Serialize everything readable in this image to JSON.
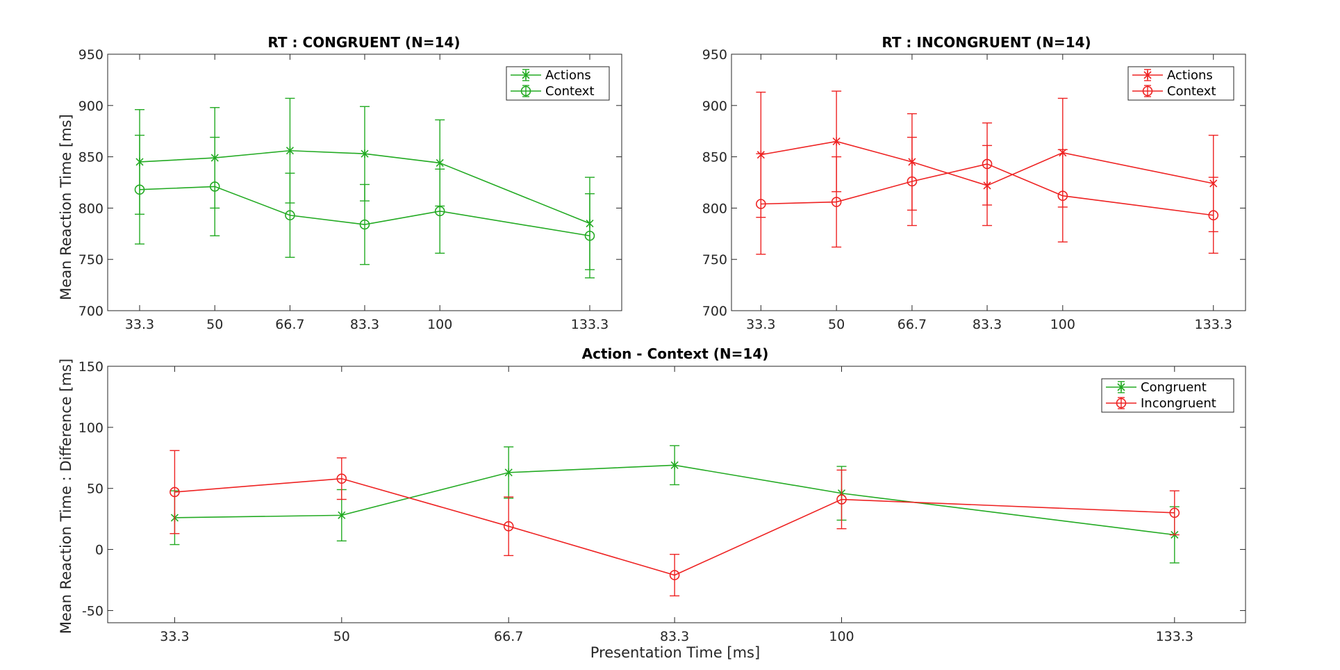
{
  "colors": {
    "congruent": "#22aa22",
    "incongruent": "#ee2222",
    "axis": "#262626"
  },
  "chart_data": [
    {
      "id": "congruent",
      "type": "line",
      "title": "RT : CONGRUENT (N=14)",
      "xlabel": "",
      "ylabel": "Mean Reaction Time [ms]",
      "x": [
        33.3,
        50,
        66.7,
        83.3,
        100,
        133.3
      ],
      "xticklabels": [
        "33.3",
        "50",
        "66.7",
        "83.3",
        "100",
        "133.3"
      ],
      "xlim": [
        26.2,
        140.4
      ],
      "ylim": [
        700,
        950
      ],
      "yticks": [
        700,
        750,
        800,
        850,
        900,
        950
      ],
      "legend_position": "top-right",
      "grid": false,
      "series": [
        {
          "name": "Actions",
          "marker": "x",
          "color": "#22aa22",
          "values": [
            845,
            849,
            856,
            853,
            844,
            785
          ],
          "error": [
            51,
            49,
            51,
            46,
            42,
            45
          ]
        },
        {
          "name": "Context",
          "marker": "o",
          "color": "#22aa22",
          "values": [
            818,
            821,
            793,
            784,
            797,
            773
          ],
          "error": [
            53,
            48,
            41,
            39,
            41,
            41
          ]
        }
      ]
    },
    {
      "id": "incongruent",
      "type": "line",
      "title": "RT : INCONGRUENT (N=14)",
      "xlabel": "",
      "ylabel": "",
      "x": [
        33.3,
        50,
        66.7,
        83.3,
        100,
        133.3
      ],
      "xticklabels": [
        "33.3",
        "50",
        "66.7",
        "83.3",
        "100",
        "133.3"
      ],
      "xlim": [
        26.8,
        140.4
      ],
      "ylim": [
        700,
        950
      ],
      "yticks": [
        700,
        750,
        800,
        850,
        900,
        950
      ],
      "legend_position": "top-right",
      "grid": false,
      "series": [
        {
          "name": "Actions",
          "marker": "x",
          "color": "#ee2222",
          "values": [
            852,
            865,
            845,
            822,
            854,
            824
          ],
          "error": [
            61,
            49,
            47,
            39,
            53,
            47
          ]
        },
        {
          "name": "Context",
          "marker": "o",
          "color": "#ee2222",
          "values": [
            804,
            806,
            826,
            843,
            812,
            793
          ],
          "error": [
            49,
            44,
            43,
            40,
            45,
            37
          ]
        }
      ]
    },
    {
      "id": "difference",
      "type": "line",
      "title": "Action - Context (N=14)",
      "xlabel": "Presentation Time [ms]",
      "ylabel": "Mean Reaction Time : Difference [ms]",
      "x": [
        33.3,
        50,
        66.7,
        83.3,
        100,
        133.3
      ],
      "xticklabels": [
        "33.3",
        "50",
        "66.7",
        "83.3",
        "100",
        "133.3"
      ],
      "xlim": [
        26.6,
        140.4
      ],
      "ylim": [
        -60,
        150
      ],
      "yticks": [
        -50,
        0,
        50,
        100,
        150
      ],
      "legend_position": "top-right",
      "grid": false,
      "series": [
        {
          "name": "Congruent",
          "marker": "x",
          "color": "#22aa22",
          "values": [
            26,
            28,
            63,
            69,
            46,
            12
          ],
          "error": [
            22,
            21,
            21,
            16,
            22,
            23
          ]
        },
        {
          "name": "Incongruent",
          "marker": "o",
          "color": "#ee2222",
          "values": [
            47,
            58,
            19,
            -21,
            41,
            30
          ],
          "error": [
            34,
            17,
            24,
            17,
            24,
            18
          ]
        }
      ]
    }
  ]
}
